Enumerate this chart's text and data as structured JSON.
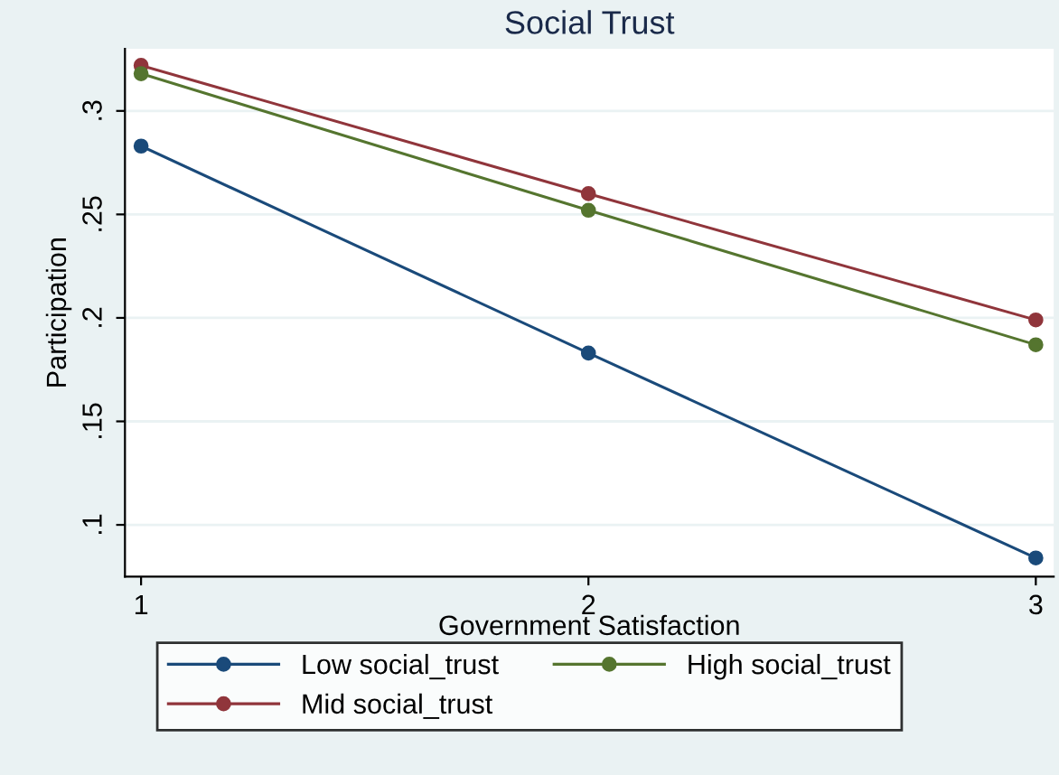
{
  "chart_data": {
    "type": "line",
    "title": "Social Trust",
    "xlabel": "Government Satisfaction",
    "ylabel": "Participation",
    "x": [
      1,
      2,
      3
    ],
    "series": [
      {
        "name": "Low social_trust",
        "color": "#1a4a7a",
        "values": [
          0.283,
          0.183,
          0.084
        ]
      },
      {
        "name": "Mid social_trust",
        "color": "#90353b",
        "values": [
          0.322,
          0.26,
          0.199
        ]
      },
      {
        "name": "High social_trust",
        "color": "#55752f",
        "values": [
          0.318,
          0.252,
          0.187
        ]
      }
    ],
    "xlim": [
      0.964,
      3.04
    ],
    "xticks": [
      1,
      2,
      3
    ],
    "ylim": [
      0.075,
      0.33
    ],
    "yticks": [
      {
        "value": 0.1,
        "label": ".1"
      },
      {
        "value": 0.15,
        "label": ".15"
      },
      {
        "value": 0.2,
        "label": ".2"
      },
      {
        "value": 0.25,
        "label": ".25"
      },
      {
        "value": 0.3,
        "label": ".3"
      }
    ],
    "grid": "y",
    "legend": "bottom",
    "marker": "circle",
    "line_style": "solid"
  }
}
